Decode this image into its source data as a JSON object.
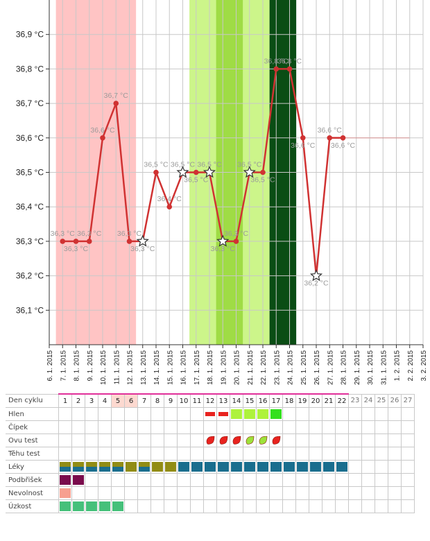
{
  "chart_data": {
    "type": "line",
    "ylim": [
      36.0,
      37.0
    ],
    "y_ticks": [
      36.1,
      36.2,
      36.3,
      36.4,
      36.5,
      36.6,
      36.7,
      36.8,
      36.9
    ],
    "y_tick_labels": [
      "36,1 °C",
      "36,2 °C",
      "36,3 °C",
      "36,4 °C",
      "36,5 °C",
      "36,6 °C",
      "36,7 °C",
      "36,8 °C",
      "36,9 °C"
    ],
    "x_tick_labels": [
      "6. 1. 2015",
      "7. 1. 2015",
      "8. 1. 2015",
      "9. 1. 2015",
      "10. 1. 2015",
      "11. 1. 2015",
      "12. 1. 2015",
      "13. 1. 2015",
      "14. 1. 2015",
      "15. 1. 2015",
      "16. 1. 2015",
      "17. 1. 2015",
      "18. 1. 2015",
      "19. 1. 2015",
      "20. 1. 2015",
      "21. 1. 2015",
      "22. 1. 2015",
      "23. 1. 2015",
      "24. 1. 2015",
      "25. 1. 2015",
      "26. 1. 2015",
      "27. 1. 2015",
      "28. 1. 2015",
      "29. 1. 2015",
      "30. 1. 2015",
      "31. 1. 2015",
      "1. 2. 2015",
      "2. 2. 2015",
      "3. 2. 2015"
    ],
    "x": [
      "7. 1. 2015",
      "8. 1. 2015",
      "9. 1. 2015",
      "10. 1. 2015",
      "11. 1. 2015",
      "12. 1. 2015",
      "13. 1. 2015",
      "14. 1. 2015",
      "15. 1. 2015",
      "16. 1. 2015",
      "17. 1. 2015",
      "18. 1. 2015",
      "19. 1. 2015",
      "20. 1. 2015",
      "21. 1. 2015",
      "22. 1. 2015",
      "23. 1. 2015",
      "24. 1. 2015",
      "25. 1. 2015",
      "26. 1. 2015",
      "27. 1. 2015",
      "28. 1. 2015"
    ],
    "series": [
      {
        "values": [
          36.3,
          36.3,
          36.3,
          36.6,
          36.7,
          36.3,
          36.3,
          36.5,
          36.4,
          36.5,
          36.5,
          36.5,
          36.3,
          36.3,
          36.5,
          36.5,
          36.8,
          36.8,
          36.6,
          36.2,
          36.6,
          36.6
        ],
        "labels": [
          "36,3 °C",
          "36,3 °C",
          "36,3 °C",
          "36,6 °C",
          "36,7 °C",
          "36,3 °C",
          "36,3 °C",
          "36,5 °C",
          "36,4 °C",
          "36,5 °C",
          "36,5 °C",
          "36,5 °C",
          "36,3 °C",
          "36,3 °C",
          "36,5 °C",
          "36,5 °C",
          "36,8 °C",
          "36,8 °C",
          "36,6 °C",
          "36,2 °C",
          "36,6 °C",
          "36,6 °C"
        ],
        "star_points": [
          6,
          9,
          11,
          12,
          14,
          19
        ],
        "color": "#d03232"
      }
    ],
    "projection": {
      "from": "28. 1. 2015",
      "to": "2. 2. 2015",
      "value": 36.6
    },
    "bands": [
      {
        "from": "7. 1. 2015",
        "to": "12. 1. 2015",
        "color": "#ffc4c4"
      },
      {
        "from": "17. 1. 2015",
        "to": "22. 1. 2015",
        "color": "#ccf58a"
      },
      {
        "from": "19. 1. 2015",
        "to": "20. 1. 2015",
        "color": "#9fdc45"
      },
      {
        "from": "23. 1. 2015",
        "to": "24. 1. 2015",
        "color": "#0a4d14"
      }
    ],
    "grid": true
  },
  "table": {
    "rows": [
      {
        "key": "day",
        "label": "Den cyklu"
      },
      {
        "key": "hlen",
        "label": "Hlen"
      },
      {
        "key": "cipek",
        "label": "Čípek"
      },
      {
        "key": "ovu",
        "label": "Ovu test"
      },
      {
        "key": "tehu",
        "label": "Těhu test"
      },
      {
        "key": "leky",
        "label": "Léky"
      },
      {
        "key": "podbrisek",
        "label": "Podbřišek"
      },
      {
        "key": "nevolnost",
        "label": "Nevolnost"
      },
      {
        "key": "uzkost",
        "label": "Úzkost"
      }
    ],
    "days": [
      "1",
      "2",
      "3",
      "4",
      "5",
      "6",
      "7",
      "8",
      "9",
      "10",
      "11",
      "12",
      "13",
      "14",
      "15",
      "16",
      "17",
      "18",
      "19",
      "20",
      "21",
      "22",
      "23",
      "24",
      "25",
      "26",
      "27"
    ],
    "active_days": 22,
    "day_highlight": {
      "days": [
        5,
        6
      ],
      "color": "#fdd9d0"
    },
    "hlen": [
      {
        "day": 12,
        "color": "#e8231f",
        "style": "bar"
      },
      {
        "day": 13,
        "color": "#e8231f",
        "style": "bar"
      },
      {
        "day": 14,
        "color": "#aef23c"
      },
      {
        "day": 15,
        "color": "#aef23c"
      },
      {
        "day": 16,
        "color": "#aef23c"
      },
      {
        "day": 17,
        "color": "#33e01e"
      }
    ],
    "ovu": [
      {
        "day": 12,
        "color": "#e8231f"
      },
      {
        "day": 13,
        "color": "#e8231f"
      },
      {
        "day": 14,
        "color": "#e8231f"
      },
      {
        "day": 15,
        "color": "#9de23a"
      },
      {
        "day": 16,
        "color": "#9de23a"
      },
      {
        "day": 17,
        "color": "#e8231f"
      }
    ],
    "leky": {
      "split_days": [
        1,
        2,
        3,
        4,
        5,
        7
      ],
      "olive_days": [
        6,
        8,
        9
      ],
      "blue_days": [
        10,
        11,
        12,
        13,
        14,
        15,
        16,
        17,
        18,
        19,
        20,
        21,
        22
      ],
      "olive": "#918c15",
      "blue": "#1a6e8e"
    },
    "podbrisek": {
      "days": [
        1,
        2
      ],
      "color": "#7a0c4c"
    },
    "nevolnost": {
      "days": [
        1
      ],
      "color": "#f7a090"
    },
    "uzkost": {
      "days": [
        1,
        2,
        3,
        4,
        5
      ],
      "color": "#46c07a"
    }
  }
}
